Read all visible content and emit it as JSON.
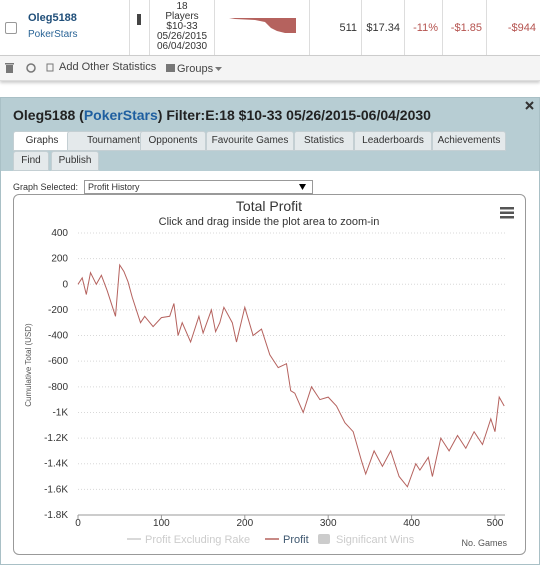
{
  "row": {
    "player": "Oleg5188",
    "site": "PokerStars",
    "filter_lines": [
      "18",
      "Players",
      "$10-33",
      "05/26/2015",
      "06/04/2030"
    ],
    "games": "511",
    "stake": "$17.34",
    "roi": "-11%",
    "avg_profit": "-$1.85",
    "profit": "-$944"
  },
  "toolbar": {
    "add_stats": "Add Other Statistics",
    "groups": "Groups"
  },
  "panel": {
    "title_prefix": "Oleg5188 (",
    "title_site": "PokerStars",
    "title_suffix": ") Filter:E:18 $10-33 05/26/2015-06/04/2030",
    "tabs": [
      "Graphs",
      "Tournaments",
      "Opponents",
      "Favourite Games",
      "Statistics",
      "Leaderboards",
      "Achievements",
      "Find",
      "Publish"
    ],
    "graph_selected_label": "Graph Selected:",
    "graph_selected": "Profit History"
  },
  "chart_data": {
    "type": "line",
    "title": "Total Profit",
    "subtitle": "Click and drag inside the plot area to zoom-in",
    "y_label": "Cumulative Total (USD)",
    "x_label": "No. Games",
    "x": [
      0,
      5,
      10,
      15,
      22,
      28,
      35,
      45,
      50,
      55,
      60,
      65,
      75,
      80,
      90,
      100,
      110,
      115,
      120,
      125,
      135,
      145,
      150,
      160,
      165,
      170,
      175,
      185,
      190,
      200,
      210,
      220,
      230,
      240,
      250,
      255,
      260,
      270,
      280,
      290,
      300,
      310,
      320,
      330,
      340,
      345,
      355,
      365,
      375,
      385,
      395,
      405,
      410,
      420,
      425,
      435,
      445,
      455,
      465,
      475,
      485,
      495,
      500,
      505,
      511
    ],
    "series": [
      {
        "name": "Profit",
        "color": "#b5625e",
        "values": [
          0,
          50,
          -80,
          90,
          0,
          70,
          -50,
          -250,
          150,
          100,
          20,
          -100,
          -300,
          -250,
          -330,
          -260,
          -250,
          -150,
          -400,
          -300,
          -450,
          -250,
          -380,
          -200,
          -370,
          -300,
          -180,
          -300,
          -450,
          -180,
          -400,
          -350,
          -550,
          -650,
          -620,
          -830,
          -850,
          -1000,
          -800,
          -900,
          -880,
          -950,
          -1080,
          -1150,
          -1380,
          -1480,
          -1300,
          -1420,
          -1300,
          -1500,
          -1580,
          -1400,
          -1450,
          -1350,
          -1500,
          -1200,
          -1300,
          -1180,
          -1280,
          -1150,
          -1250,
          -1050,
          -1150,
          -880,
          -950
        ]
      }
    ],
    "legend": [
      {
        "name": "Profit Excluding Rake",
        "color": "#cccccc",
        "shape": "line"
      },
      {
        "name": "Profit",
        "color": "#b5625e",
        "shape": "line"
      },
      {
        "name": "Significant Wins",
        "color": "#cccccc",
        "shape": "box"
      }
    ],
    "xlim": [
      0,
      512
    ],
    "ylim": [
      -1800,
      400
    ],
    "xticks": [
      0,
      100,
      200,
      300,
      400,
      500
    ],
    "yticks": [
      400,
      200,
      0,
      -200,
      -400,
      -600,
      -800,
      {
        "value": -1000,
        "label": "-1K"
      },
      {
        "value": -1200,
        "label": "-1.2K"
      },
      {
        "value": -1400,
        "label": "-1.4K"
      },
      {
        "value": -1600,
        "label": "-1.6K"
      },
      {
        "value": -1800,
        "label": "-1.8K"
      }
    ],
    "grid": true
  }
}
